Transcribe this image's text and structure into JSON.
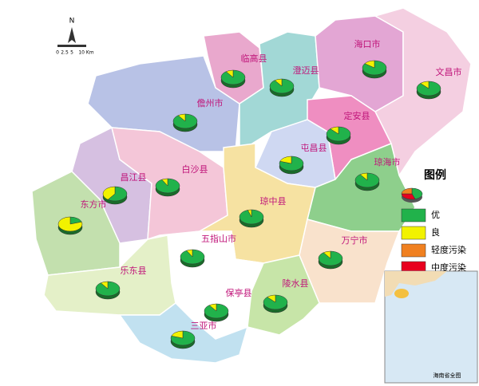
{
  "counties": [
    {
      "name": "临高县",
      "share": [
        90,
        10
      ]
    },
    {
      "name": "澄迈县",
      "share": [
        90,
        10
      ]
    },
    {
      "name": "海口市",
      "share": [
        85,
        15
      ]
    },
    {
      "name": "文昌市",
      "share": [
        88,
        12
      ]
    },
    {
      "name": "儋州市",
      "share": [
        90,
        10
      ]
    },
    {
      "name": "定安县",
      "share": [
        88,
        12
      ]
    },
    {
      "name": "屯昌县",
      "share": [
        80,
        20
      ]
    },
    {
      "name": "琼海市",
      "share": [
        90,
        10
      ]
    },
    {
      "name": "昌江县",
      "share": [
        60,
        40
      ]
    },
    {
      "name": "白沙县",
      "share": [
        92,
        8
      ]
    },
    {
      "name": "东方市",
      "share": [
        20,
        80
      ]
    },
    {
      "name": "琼中县",
      "share": [
        95,
        5
      ]
    },
    {
      "name": "五指山市",
      "share": [
        92,
        8
      ]
    },
    {
      "name": "万宁市",
      "share": [
        90,
        10
      ]
    },
    {
      "name": "乐东县",
      "share": [
        90,
        10
      ]
    },
    {
      "name": "保亭县",
      "share": [
        90,
        10
      ]
    },
    {
      "name": "陵水县",
      "share": [
        88,
        12
      ]
    },
    {
      "name": "三亚市",
      "share": [
        80,
        20
      ]
    }
  ],
  "legend": {
    "title": "图例",
    "items": [
      {
        "label": "优",
        "color": "#21b24b"
      },
      {
        "label": "良",
        "color": "#f2f200"
      },
      {
        "label": "轻度污染",
        "color": "#f08020"
      },
      {
        "label": "中度污染",
        "color": "#e8001f"
      }
    ]
  },
  "compass": "N",
  "scale_labels": [
    "0",
    "2.5",
    "5",
    "10 Km"
  ],
  "inset_title": "海南省全图"
}
